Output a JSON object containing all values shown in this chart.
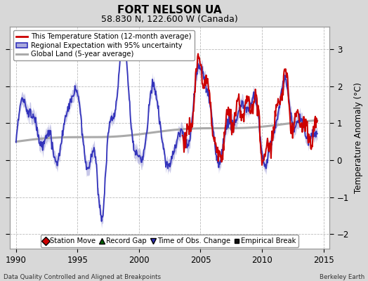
{
  "title": "FORT NELSON UA",
  "subtitle": "58.830 N, 122.600 W (Canada)",
  "ylabel": "Temperature Anomaly (°C)",
  "xlabel_left": "Data Quality Controlled and Aligned at Breakpoints",
  "xlabel_right": "Berkeley Earth",
  "xlim": [
    1989.5,
    2015.5
  ],
  "ylim": [
    -2.4,
    3.6
  ],
  "yticks": [
    -2,
    -1,
    0,
    1,
    2,
    3
  ],
  "xticks": [
    1990,
    1995,
    2000,
    2005,
    2010,
    2015
  ],
  "bg_color": "#d8d8d8",
  "plot_bg_color": "#ffffff",
  "grid_color": "#bbbbbb",
  "legend1_labels": [
    "This Temperature Station (12-month average)",
    "Regional Expectation with 95% uncertainty",
    "Global Land (5-year average)"
  ],
  "legend2_labels": [
    "Station Move",
    "Record Gap",
    "Time of Obs. Change",
    "Empirical Break"
  ],
  "station_color": "#cc0000",
  "regional_color": "#3333bb",
  "regional_fill_color": "#aaaadd",
  "global_color": "#aaaaaa",
  "title_fontsize": 11,
  "subtitle_fontsize": 9,
  "tick_fontsize": 8.5,
  "label_fontsize": 8.5
}
